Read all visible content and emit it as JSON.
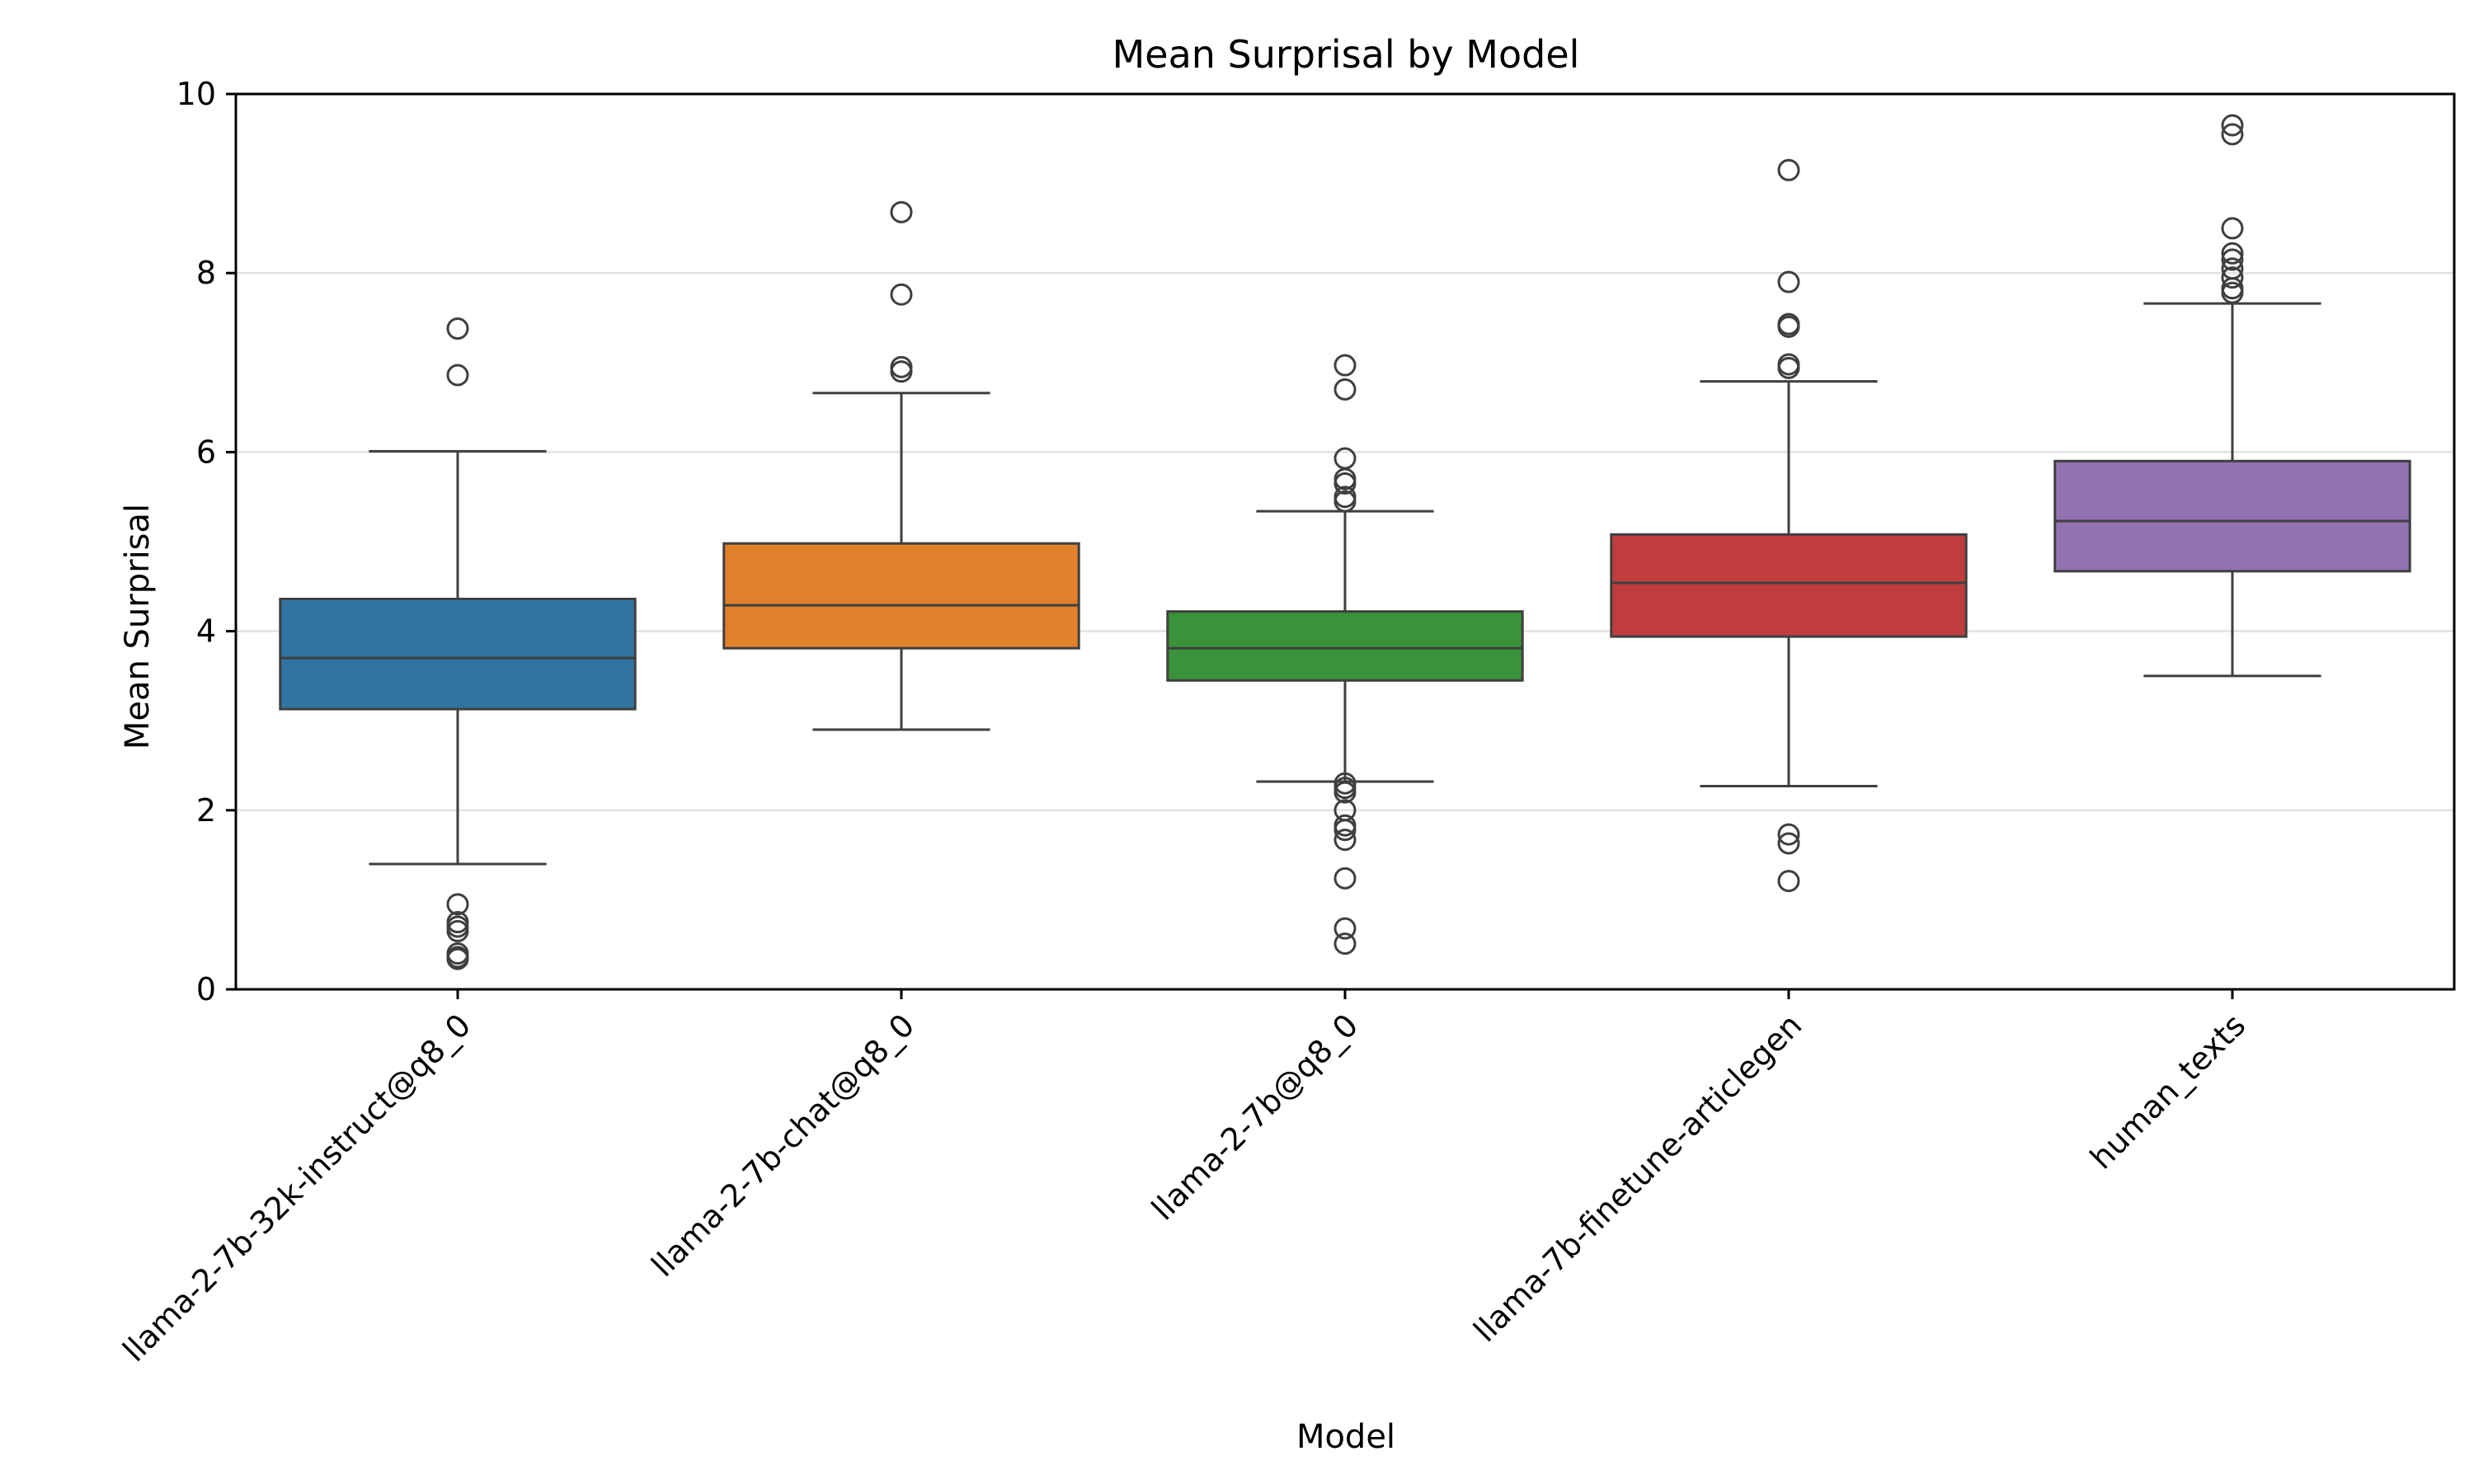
{
  "chart_data": {
    "type": "box",
    "title": "Mean Surprisal by Model",
    "xlabel": "Model",
    "ylabel": "Mean Surprisal",
    "ylim": [
      0,
      10
    ],
    "yticks": [
      0,
      2,
      4,
      6,
      8,
      10
    ],
    "grid": "horizontal",
    "categories": [
      "llama-2-7b-32k-instruct@q8_0",
      "llama-2-7b-chat@q8_0",
      "llama-2-7b@q8_0",
      "llama-7b-finetune-articlegen",
      "human_texts"
    ],
    "boxes": [
      {
        "category": "llama-2-7b-32k-instruct@q8_0",
        "color": "#3274a1",
        "whisker_low": 1.4,
        "q1": 3.13,
        "median": 3.7,
        "q3": 4.36,
        "whisker_high": 6.01,
        "outliers": [
          7.38,
          6.86,
          0.95,
          0.75,
          0.7,
          0.65,
          0.4,
          0.36,
          0.34
        ]
      },
      {
        "category": "llama-2-7b-chat@q8_0",
        "color": "#e1812c",
        "whisker_low": 2.9,
        "q1": 3.81,
        "median": 4.29,
        "q3": 4.98,
        "whisker_high": 6.66,
        "outliers": [
          8.68,
          7.76,
          6.95,
          6.9
        ]
      },
      {
        "category": "llama-2-7b@q8_0",
        "color": "#3a923a",
        "whisker_low": 2.32,
        "q1": 3.45,
        "median": 3.81,
        "q3": 4.22,
        "whisker_high": 5.34,
        "outliers": [
          6.97,
          6.7,
          5.93,
          5.7,
          5.65,
          5.5,
          5.45,
          2.3,
          2.25,
          2.2,
          2.0,
          1.83,
          1.78,
          1.67,
          1.24,
          0.68,
          0.51
        ]
      },
      {
        "category": "llama-7b-finetune-articlegen",
        "color": "#c03d3e",
        "whisker_low": 2.27,
        "q1": 3.94,
        "median": 4.54,
        "q3": 5.08,
        "whisker_high": 6.79,
        "outliers": [
          9.15,
          7.9,
          7.43,
          7.4,
          6.98,
          6.94,
          1.73,
          1.63,
          1.21
        ]
      },
      {
        "category": "human_texts",
        "color": "#9372b2",
        "whisker_low": 3.5,
        "q1": 4.67,
        "median": 5.23,
        "q3": 5.9,
        "whisker_high": 7.66,
        "outliers": [
          9.65,
          9.55,
          8.5,
          8.22,
          8.15,
          8.05,
          7.95,
          7.83,
          7.78
        ]
      }
    ]
  }
}
